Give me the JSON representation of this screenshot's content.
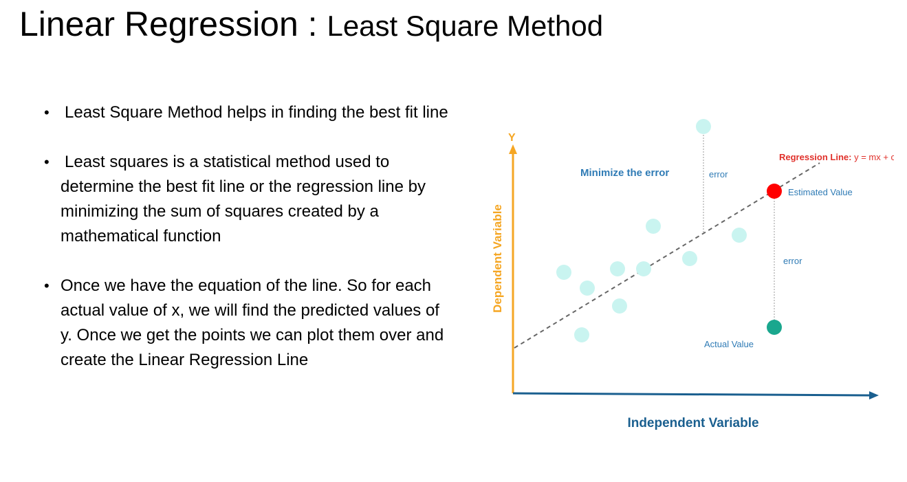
{
  "slide": {
    "title_main": "Linear Regression : ",
    "title_sub": "Least Square Method",
    "bullets": [
      "Least Square Method helps in finding the best fit line",
      "Least squares is a statistical method used to determine the best fit line or the regression line by minimizing the sum of squares created by a mathematical function",
      "Once we have the equation of the line. So for each actual value of x, we will find the predicted values of y. Once we get the points we can plot them over and create the Linear Regression Line"
    ]
  },
  "figure": {
    "y_letter": "Y",
    "ylabel": "Dependent Variable",
    "xlabel": "Independent Variable",
    "minimize_label": "Minimize the error",
    "error_label": "error",
    "regression_label_bold": "Regression Line:",
    "regression_label_eq": " y = mx + c",
    "estimated_label": "Estimated Value",
    "actual_label": "Actual Value",
    "colors": {
      "axis_y": "#f5a623",
      "axis_x": "#1a5f8f",
      "point": "#c9f4f0",
      "estimated": "#ff0000",
      "actual": "#1aa78e",
      "label_blue": "#2f7bb5",
      "regression_red": "#e0302a"
    }
  }
}
